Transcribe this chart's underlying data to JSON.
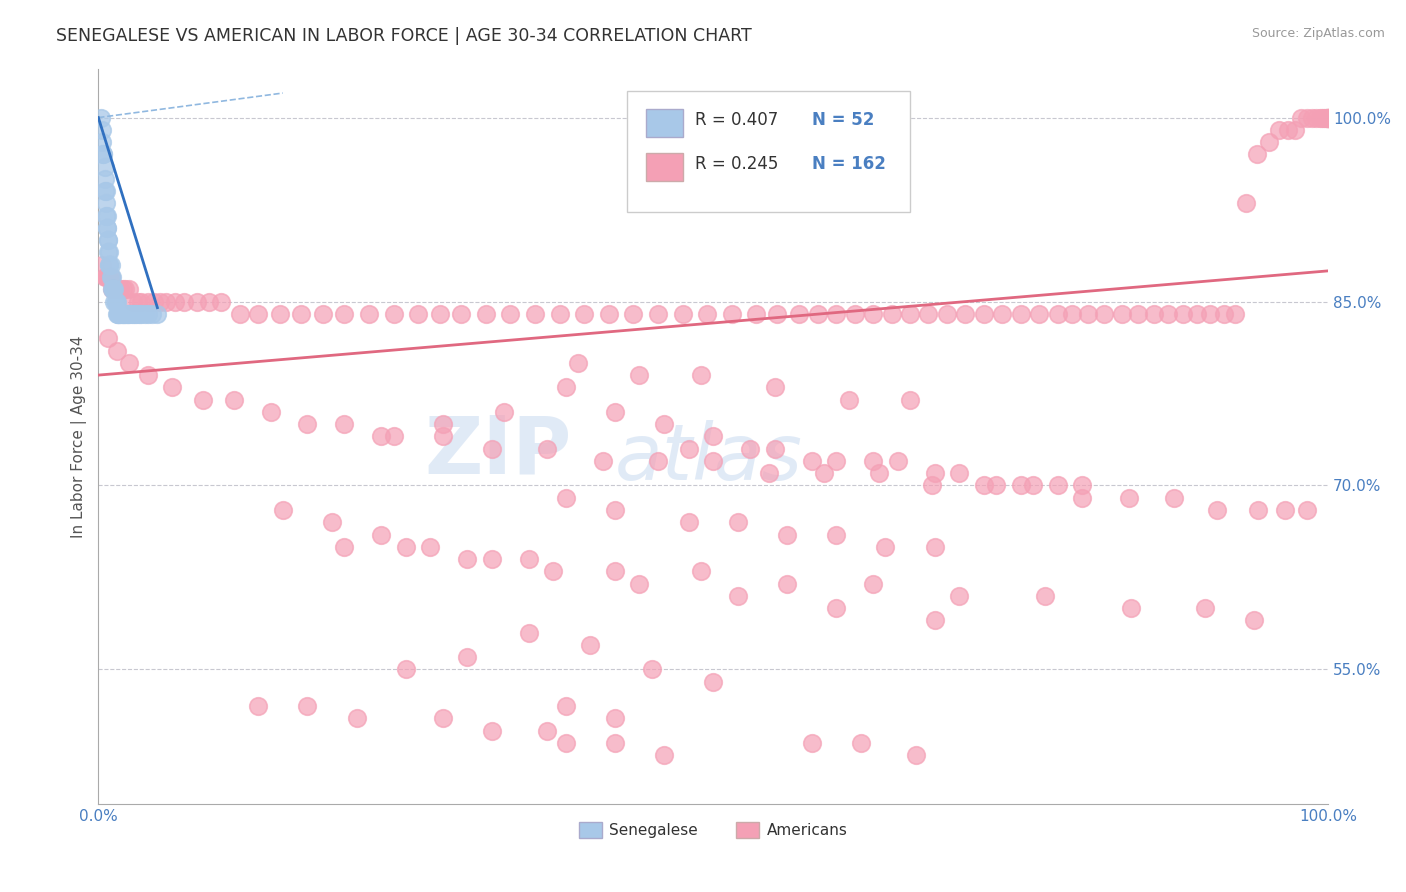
{
  "title": "SENEGALESE VS AMERICAN IN LABOR FORCE | AGE 30-34 CORRELATION CHART",
  "source_text": "Source: ZipAtlas.com",
  "ylabel": "In Labor Force | Age 30-34",
  "xlim": [
    0.0,
    1.0
  ],
  "ylim": [
    0.44,
    1.04
  ],
  "xtick_labels": [
    "0.0%",
    "100.0%"
  ],
  "ytick_labels": [
    "55.0%",
    "70.0%",
    "85.0%",
    "100.0%"
  ],
  "ytick_positions": [
    0.55,
    0.7,
    0.85,
    1.0
  ],
  "legend_r_blue": "R = 0.407",
  "legend_n_blue": "N = 52",
  "legend_r_pink": "R = 0.245",
  "legend_n_pink": "N = 162",
  "legend_label_blue": "Senegalese",
  "legend_label_pink": "Americans",
  "blue_color": "#a8c8e8",
  "pink_color": "#f4a0b5",
  "blue_line_color": "#3070c0",
  "blue_dashed_color": "#90b8e0",
  "pink_line_color": "#e06880",
  "title_fontsize": 12.5,
  "blue_scatter_x": [
    0.002,
    0.003,
    0.003,
    0.004,
    0.004,
    0.005,
    0.005,
    0.005,
    0.006,
    0.006,
    0.006,
    0.007,
    0.007,
    0.007,
    0.008,
    0.008,
    0.008,
    0.009,
    0.009,
    0.009,
    0.01,
    0.01,
    0.011,
    0.011,
    0.012,
    0.012,
    0.013,
    0.013,
    0.014,
    0.014,
    0.015,
    0.015,
    0.016,
    0.016,
    0.017,
    0.018,
    0.019,
    0.02,
    0.021,
    0.022,
    0.023,
    0.024,
    0.025,
    0.027,
    0.029,
    0.031,
    0.033,
    0.035,
    0.038,
    0.04,
    0.044,
    0.048
  ],
  "blue_scatter_y": [
    1.0,
    0.99,
    0.98,
    0.97,
    0.97,
    0.96,
    0.95,
    0.94,
    0.94,
    0.93,
    0.92,
    0.92,
    0.91,
    0.91,
    0.9,
    0.9,
    0.89,
    0.89,
    0.88,
    0.88,
    0.88,
    0.87,
    0.87,
    0.86,
    0.86,
    0.86,
    0.86,
    0.85,
    0.85,
    0.85,
    0.85,
    0.84,
    0.84,
    0.84,
    0.84,
    0.84,
    0.84,
    0.84,
    0.84,
    0.84,
    0.84,
    0.84,
    0.84,
    0.84,
    0.84,
    0.84,
    0.84,
    0.84,
    0.84,
    0.84,
    0.84,
    0.84
  ],
  "pink_scatter_x": [
    0.003,
    0.005,
    0.006,
    0.007,
    0.008,
    0.009,
    0.01,
    0.011,
    0.012,
    0.013,
    0.014,
    0.015,
    0.016,
    0.018,
    0.02,
    0.022,
    0.025,
    0.028,
    0.032,
    0.035,
    0.04,
    0.045,
    0.05,
    0.055,
    0.062,
    0.07,
    0.08,
    0.09,
    0.1,
    0.115,
    0.13,
    0.148,
    0.165,
    0.183,
    0.2,
    0.22,
    0.24,
    0.26,
    0.278,
    0.295,
    0.315,
    0.335,
    0.355,
    0.375,
    0.395,
    0.415,
    0.435,
    0.455,
    0.475,
    0.495,
    0.515,
    0.535,
    0.552,
    0.57,
    0.585,
    0.6,
    0.615,
    0.63,
    0.645,
    0.66,
    0.675,
    0.69,
    0.705,
    0.72,
    0.735,
    0.75,
    0.765,
    0.78,
    0.792,
    0.805,
    0.818,
    0.832,
    0.845,
    0.858,
    0.87,
    0.882,
    0.893,
    0.904,
    0.915,
    0.924,
    0.933,
    0.942,
    0.952,
    0.96,
    0.967,
    0.973,
    0.978,
    0.983,
    0.987,
    0.99,
    0.993,
    0.995,
    0.997,
    0.998,
    0.999,
    1.0,
    1.0,
    1.0,
    1.0,
    1.0,
    0.008,
    0.015,
    0.025,
    0.04,
    0.06,
    0.085,
    0.11,
    0.14,
    0.17,
    0.2,
    0.24,
    0.28,
    0.32,
    0.365,
    0.41,
    0.455,
    0.5,
    0.545,
    0.59,
    0.635,
    0.678,
    0.72,
    0.76,
    0.8,
    0.838,
    0.875,
    0.91,
    0.943,
    0.965,
    0.983,
    0.38,
    0.42,
    0.46,
    0.5,
    0.55,
    0.6,
    0.65,
    0.7,
    0.75,
    0.8,
    0.2,
    0.25,
    0.3,
    0.35,
    0.42,
    0.49,
    0.56,
    0.63,
    0.7,
    0.77,
    0.84,
    0.9,
    0.94,
    0.15,
    0.19,
    0.23,
    0.27,
    0.32,
    0.37,
    0.44,
    0.52,
    0.6,
    0.68
  ],
  "pink_scatter_y": [
    0.88,
    0.87,
    0.87,
    0.87,
    0.87,
    0.87,
    0.87,
    0.86,
    0.86,
    0.86,
    0.86,
    0.86,
    0.86,
    0.86,
    0.86,
    0.86,
    0.86,
    0.85,
    0.85,
    0.85,
    0.85,
    0.85,
    0.85,
    0.85,
    0.85,
    0.85,
    0.85,
    0.85,
    0.85,
    0.84,
    0.84,
    0.84,
    0.84,
    0.84,
    0.84,
    0.84,
    0.84,
    0.84,
    0.84,
    0.84,
    0.84,
    0.84,
    0.84,
    0.84,
    0.84,
    0.84,
    0.84,
    0.84,
    0.84,
    0.84,
    0.84,
    0.84,
    0.84,
    0.84,
    0.84,
    0.84,
    0.84,
    0.84,
    0.84,
    0.84,
    0.84,
    0.84,
    0.84,
    0.84,
    0.84,
    0.84,
    0.84,
    0.84,
    0.84,
    0.84,
    0.84,
    0.84,
    0.84,
    0.84,
    0.84,
    0.84,
    0.84,
    0.84,
    0.84,
    0.84,
    0.93,
    0.97,
    0.98,
    0.99,
    0.99,
    0.99,
    1.0,
    1.0,
    1.0,
    1.0,
    1.0,
    1.0,
    1.0,
    1.0,
    1.0,
    1.0,
    1.0,
    1.0,
    1.0,
    1.0,
    0.82,
    0.81,
    0.8,
    0.79,
    0.78,
    0.77,
    0.77,
    0.76,
    0.75,
    0.75,
    0.74,
    0.74,
    0.73,
    0.73,
    0.72,
    0.72,
    0.72,
    0.71,
    0.71,
    0.71,
    0.7,
    0.7,
    0.7,
    0.69,
    0.69,
    0.69,
    0.68,
    0.68,
    0.68,
    0.68,
    0.78,
    0.76,
    0.75,
    0.74,
    0.73,
    0.72,
    0.72,
    0.71,
    0.7,
    0.7,
    0.65,
    0.65,
    0.64,
    0.64,
    0.63,
    0.63,
    0.62,
    0.62,
    0.61,
    0.61,
    0.6,
    0.6,
    0.59,
    0.68,
    0.67,
    0.66,
    0.65,
    0.64,
    0.63,
    0.62,
    0.61,
    0.6,
    0.59
  ],
  "pink_extra_x": [
    0.35,
    0.4,
    0.3,
    0.25,
    0.45,
    0.5,
    0.13,
    0.17,
    0.21,
    0.39,
    0.44,
    0.49,
    0.55,
    0.61,
    0.66,
    0.33,
    0.28,
    0.23,
    0.48,
    0.53,
    0.58,
    0.63,
    0.68,
    0.73,
    0.78,
    0.48,
    0.52,
    0.56,
    0.6,
    0.64,
    0.68,
    0.42,
    0.38
  ],
  "pink_extra_y": [
    0.58,
    0.57,
    0.56,
    0.55,
    0.55,
    0.54,
    0.52,
    0.52,
    0.51,
    0.8,
    0.79,
    0.79,
    0.78,
    0.77,
    0.77,
    0.76,
    0.75,
    0.74,
    0.73,
    0.73,
    0.72,
    0.72,
    0.71,
    0.7,
    0.7,
    0.67,
    0.67,
    0.66,
    0.66,
    0.65,
    0.65,
    0.68,
    0.69
  ],
  "pink_low_x": [
    0.38,
    0.42,
    0.46,
    0.38,
    0.42,
    0.28,
    0.32,
    0.365,
    0.58,
    0.62,
    0.665
  ],
  "pink_low_y": [
    0.49,
    0.49,
    0.48,
    0.52,
    0.51,
    0.51,
    0.5,
    0.5,
    0.49,
    0.49,
    0.48
  ]
}
